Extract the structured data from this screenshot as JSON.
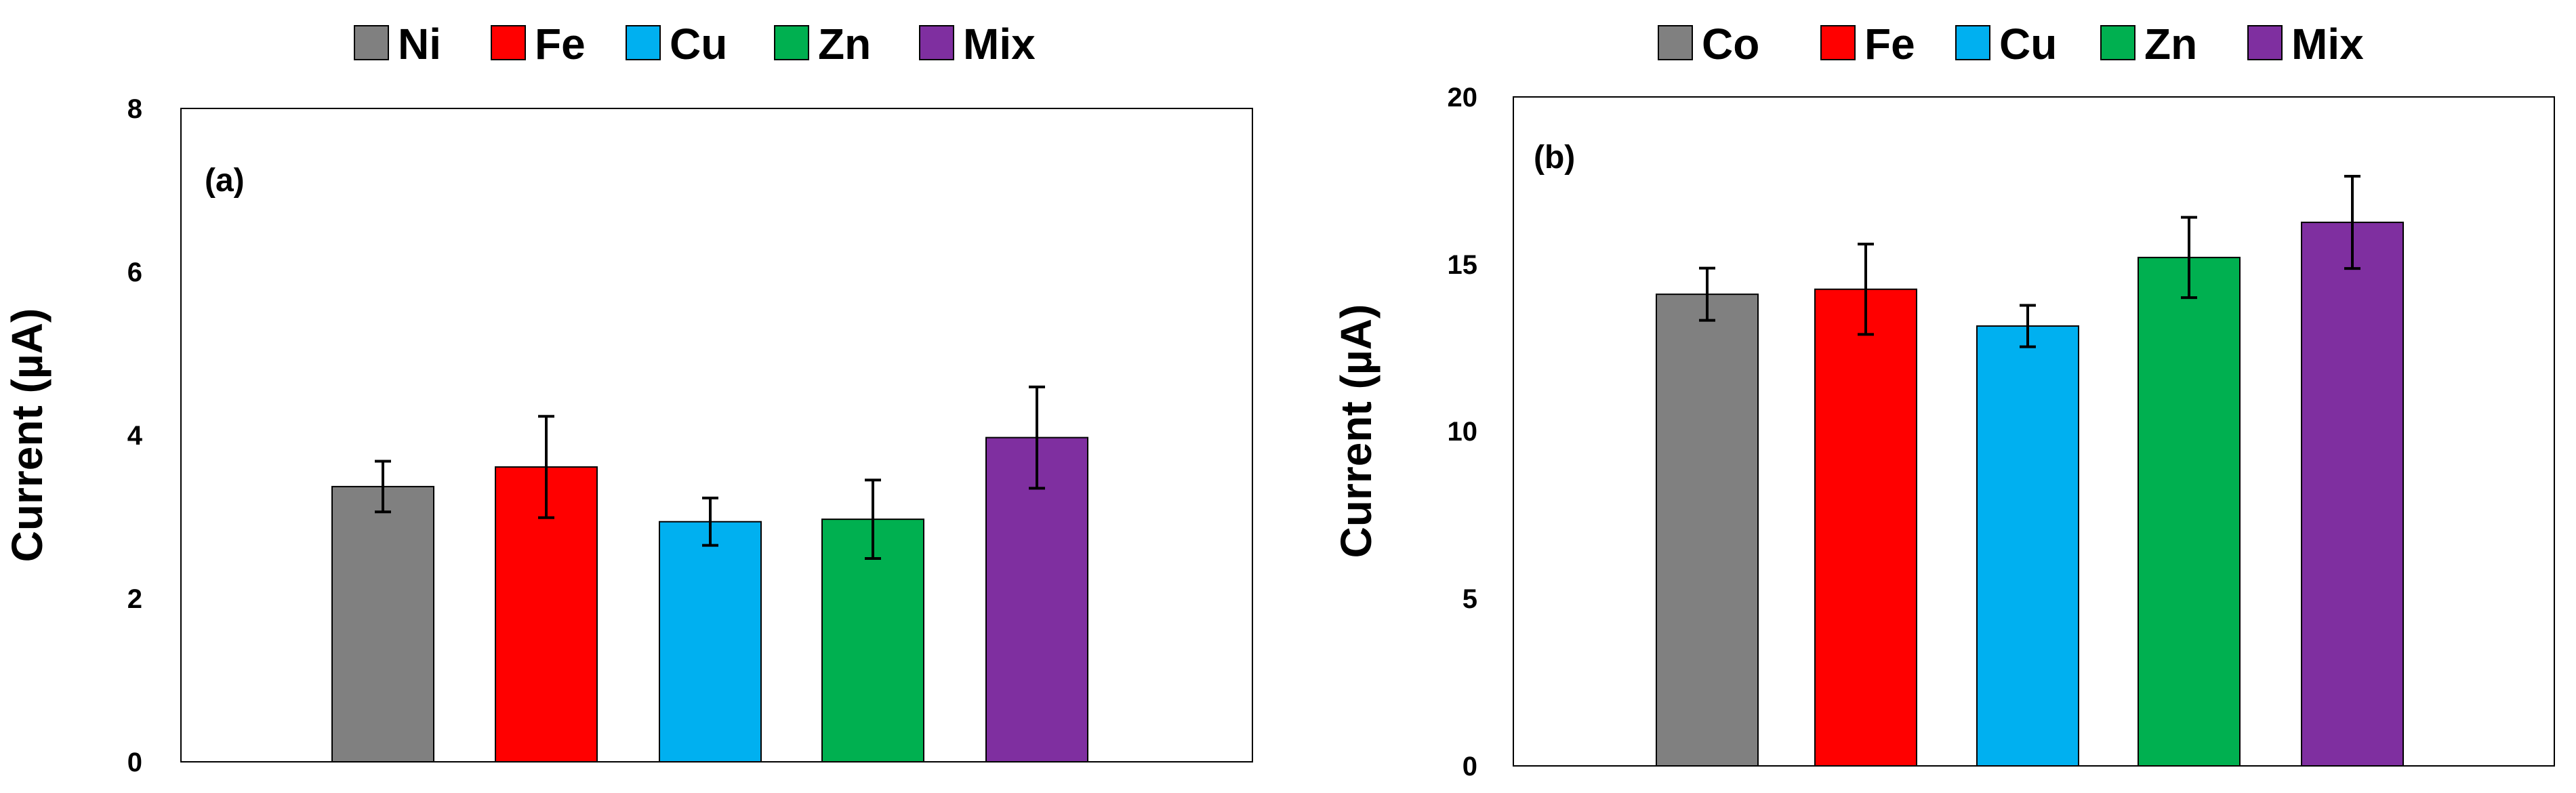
{
  "chart_data": [
    {
      "type": "bar",
      "panel_label": "(a)",
      "title": "",
      "xlabel": "",
      "ylabel": "Current (µA)",
      "ylim": [
        0,
        8
      ],
      "yticks": [
        0,
        2,
        4,
        6,
        8
      ],
      "grid": false,
      "legend_position": "top",
      "categories": [
        "Ni",
        "Fe",
        "Cu",
        "Zn",
        "Mix"
      ],
      "values": [
        3.37,
        3.61,
        2.94,
        2.97,
        3.97
      ],
      "errors": [
        0.31,
        0.62,
        0.29,
        0.48,
        0.62
      ],
      "colors": [
        "#808080",
        "#ff0000",
        "#00b0f0",
        "#00b050",
        "#7f2fa0"
      ]
    },
    {
      "type": "bar",
      "panel_label": "(b)",
      "title": "",
      "xlabel": "",
      "ylabel": "Current (µA)",
      "ylim": [
        0,
        20
      ],
      "yticks": [
        0,
        5,
        10,
        15,
        20
      ],
      "grid": false,
      "legend_position": "top",
      "categories": [
        "Co",
        "Fe",
        "Cu",
        "Zn",
        "Mix"
      ],
      "values": [
        14.1,
        14.25,
        13.15,
        15.2,
        16.25
      ],
      "errors": [
        0.78,
        1.35,
        0.62,
        1.2,
        1.38
      ],
      "colors": [
        "#808080",
        "#ff0000",
        "#00b0f0",
        "#00b050",
        "#7f2fa0"
      ]
    }
  ]
}
